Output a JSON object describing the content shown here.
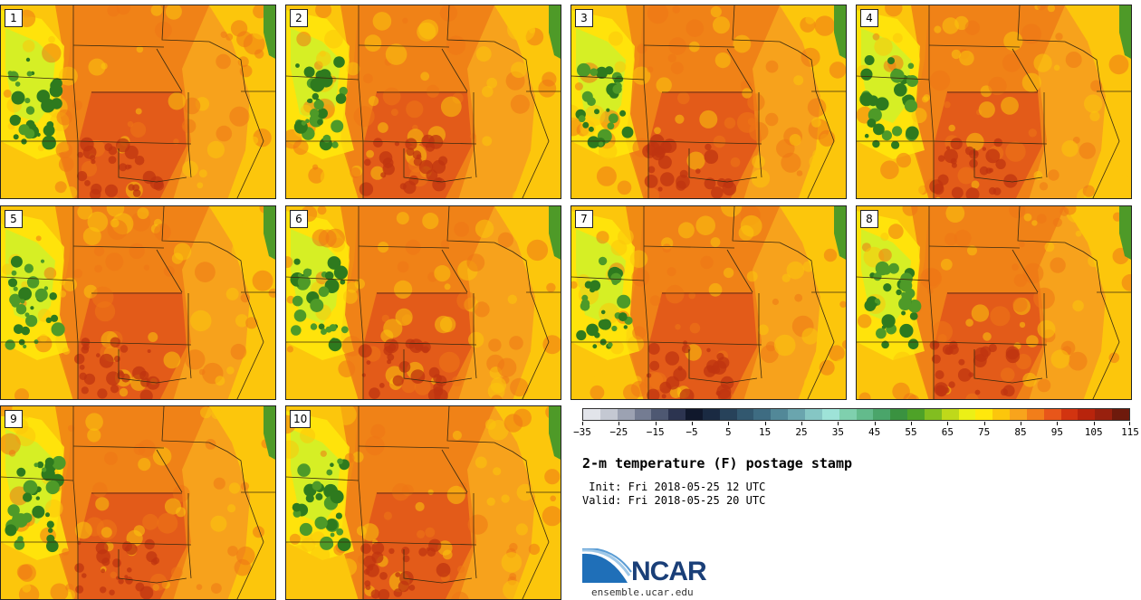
{
  "panels": [
    {
      "label": "1"
    },
    {
      "label": "2"
    },
    {
      "label": "3"
    },
    {
      "label": "4"
    },
    {
      "label": "5"
    },
    {
      "label": "6"
    },
    {
      "label": "7"
    },
    {
      "label": "8"
    },
    {
      "label": "9"
    },
    {
      "label": "10"
    }
  ],
  "colorbar": {
    "colors": [
      "#e2e4ea",
      "#c4c8d2",
      "#9ca2b2",
      "#747c92",
      "#4e5872",
      "#2c3450",
      "#10182c",
      "#1a2a42",
      "#27425a",
      "#32586f",
      "#3e6c82",
      "#528898",
      "#6aa5ae",
      "#85c6c4",
      "#9ee3d8",
      "#7fd0ae",
      "#63bb8c",
      "#4aa56a",
      "#3a9240",
      "#4ea228",
      "#82be20",
      "#bfd91a",
      "#ecf016",
      "#ffe80c",
      "#fcc60c",
      "#f8a41c",
      "#f27e1a",
      "#e8561a",
      "#d23410",
      "#b8240c",
      "#98200e",
      "#6e1a0c"
    ],
    "ticks": [
      "−35",
      "−25",
      "−15",
      "−5",
      "5",
      "15",
      "25",
      "35",
      "45",
      "55",
      "65",
      "75",
      "85",
      "95",
      "105",
      "115"
    ]
  },
  "title": "2-m temperature (F) postage stamp",
  "init": " Init: Fri 2018-05-25 12 UTC",
  "valid": "Valid: Fri 2018-05-25 20 UTC",
  "logo": {
    "text": "NCAR",
    "url": "ensemble.ucar.edu"
  },
  "palette": {
    "base": "#f7a21c",
    "warm": "#ee7716",
    "hot": "#e0511a",
    "hottest": "#bf3410",
    "cool": "#fcc60c",
    "mild": "#ffe80c",
    "lime": "#d2ef28",
    "green": "#4e9a28",
    "darkgreen": "#2e7a1e"
  }
}
